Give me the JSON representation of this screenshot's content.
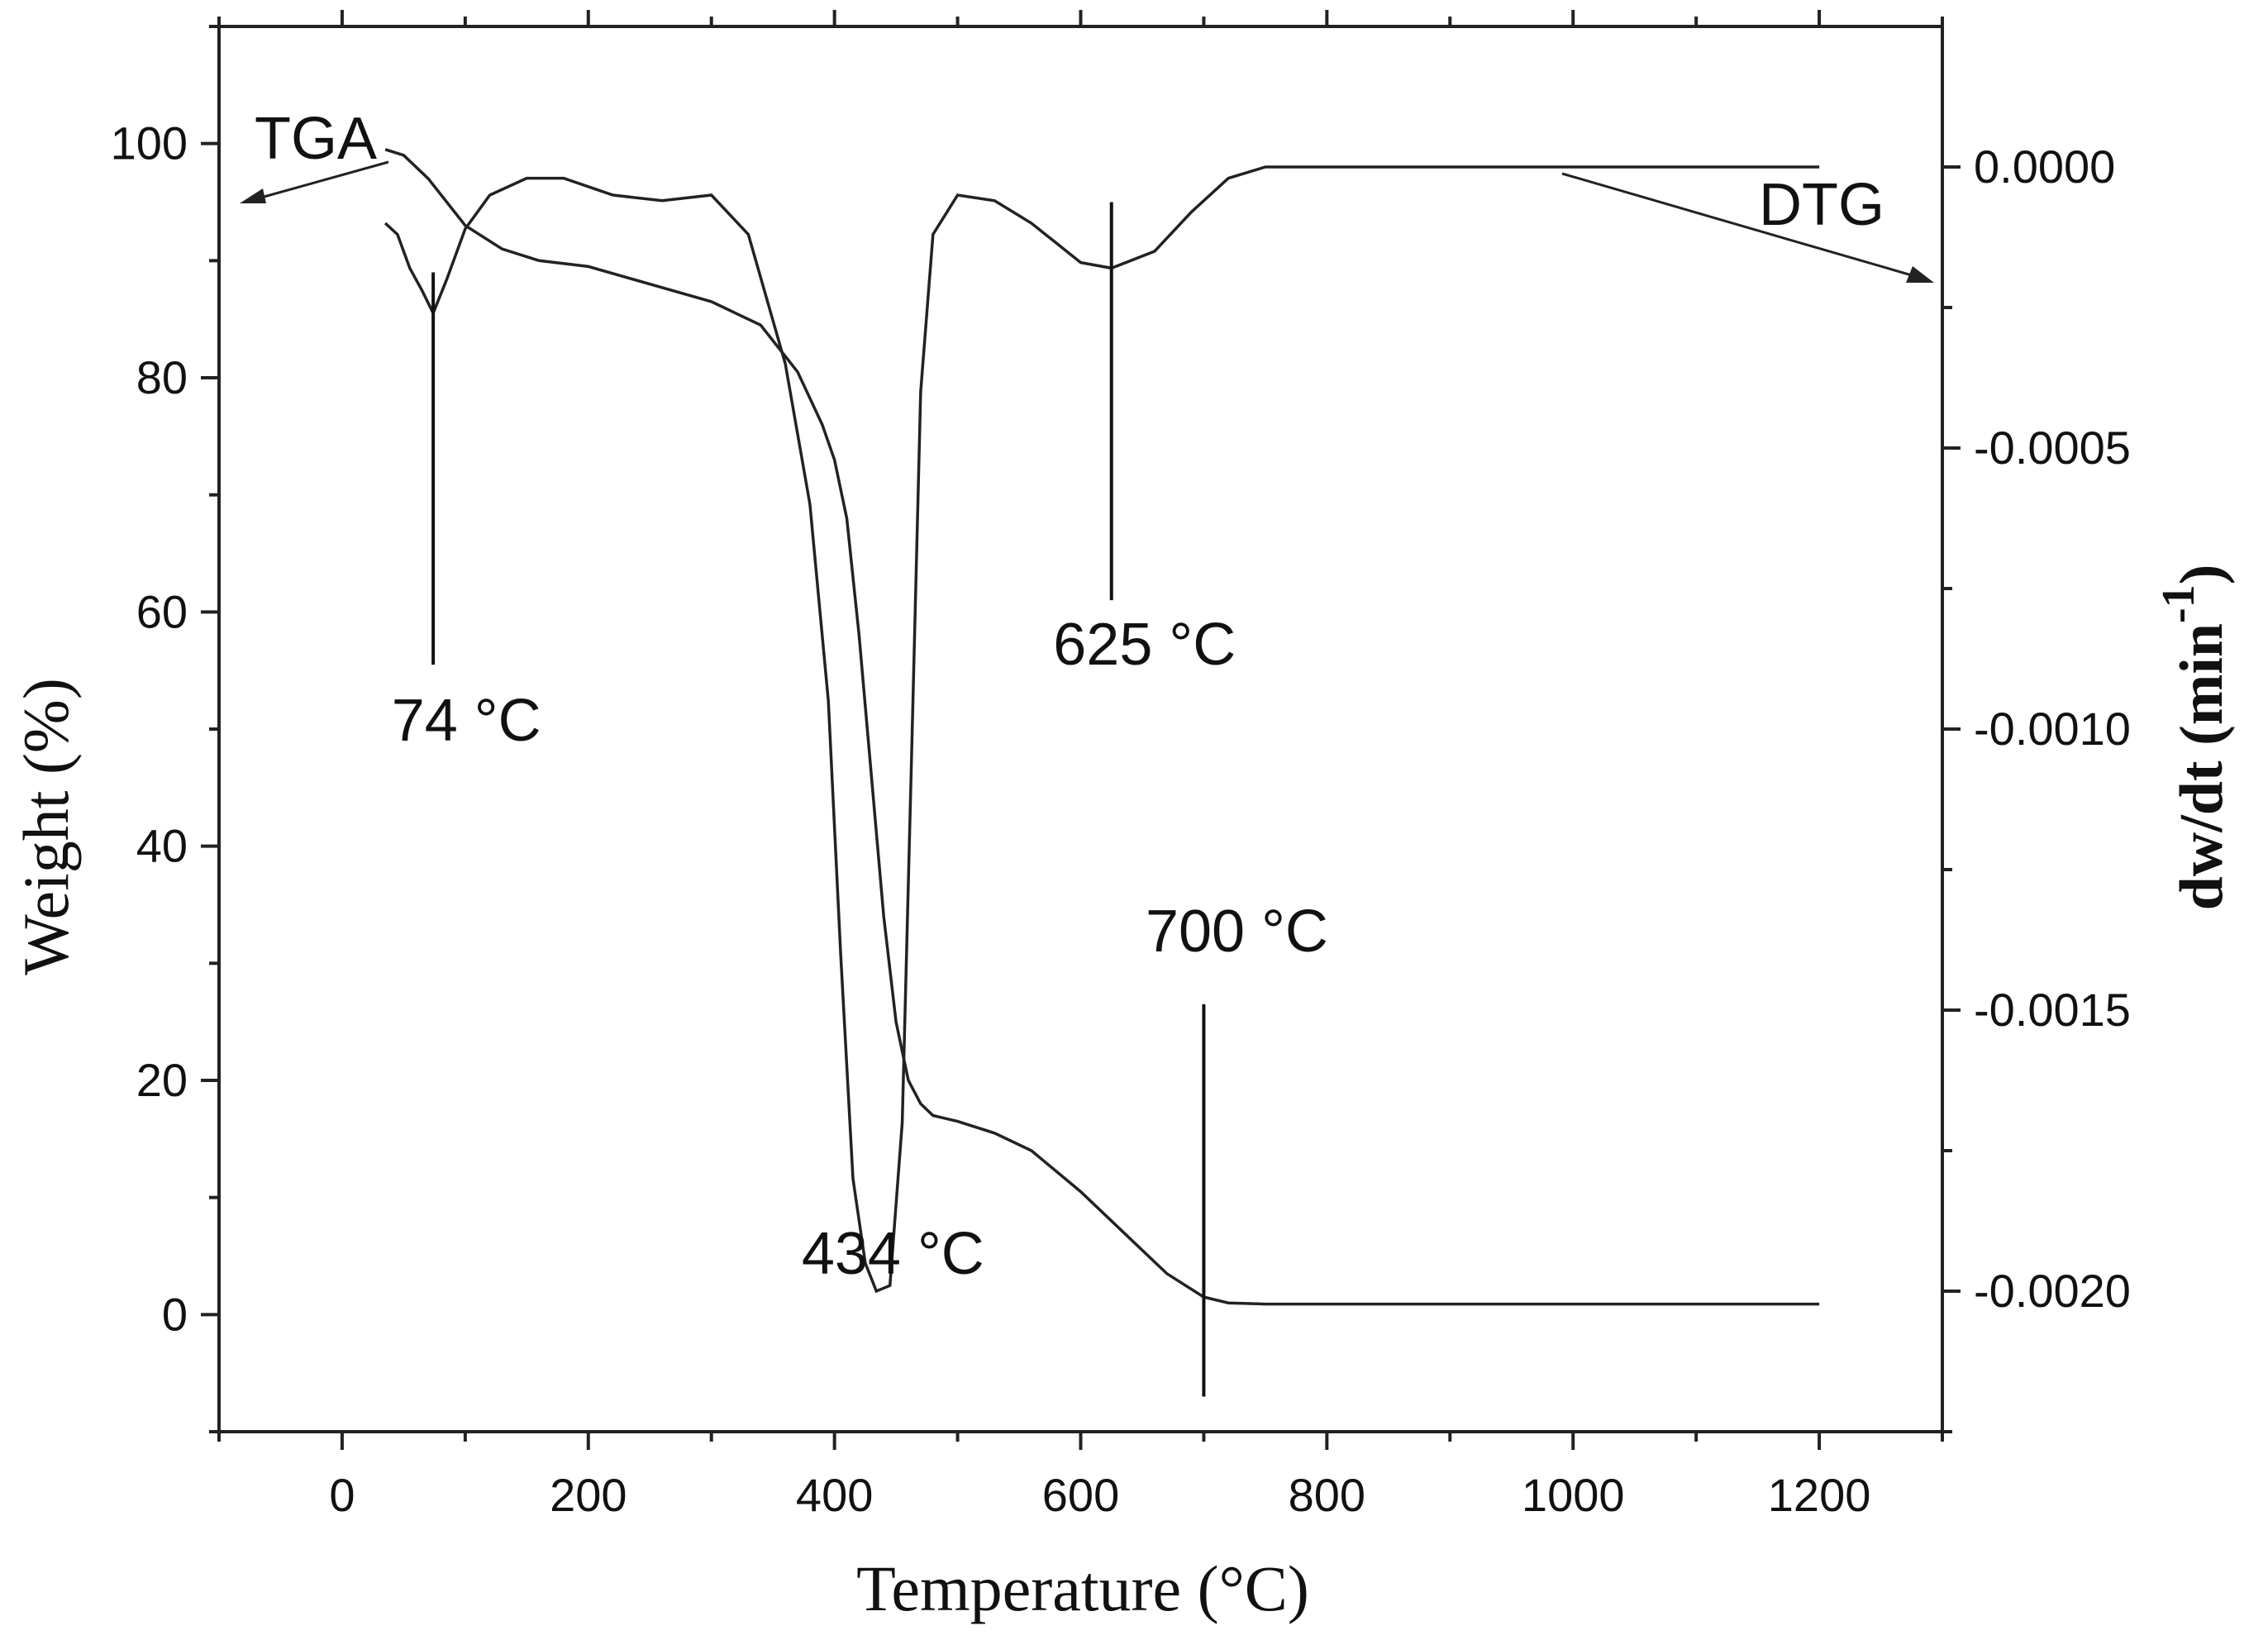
{
  "chart_data": {
    "type": "line",
    "title": "",
    "xlabel": "Temperature (°C)",
    "ylabel_left": "Weight (%)",
    "ylabel_right_base": "dw/dt (min",
    "ylabel_right_sup": "-1",
    "ylabel_right_close": ")",
    "xlim": [
      -100,
      1300
    ],
    "ylim_left": [
      -10,
      110
    ],
    "ylim_right": [
      -0.00225,
      0.00025
    ],
    "x_ticks": [
      0,
      200,
      400,
      600,
      800,
      1000,
      1200
    ],
    "x_tick_labels": [
      "0",
      "200",
      "400",
      "600",
      "800",
      "1000",
      "1200"
    ],
    "y_left_ticks": [
      0,
      20,
      40,
      60,
      80,
      100
    ],
    "y_left_tick_labels": [
      "0",
      "20",
      "40",
      "60",
      "80",
      "100"
    ],
    "y_right_ticks": [
      0,
      -0.0005,
      -0.001,
      -0.0015,
      -0.002
    ],
    "y_right_tick_labels": [
      "0.0000",
      "-0.0005",
      "-0.0010",
      "-0.0015",
      "-0.0020"
    ],
    "grid": false,
    "series": [
      {
        "name": "TGA",
        "axis": "left",
        "x": [
          35,
          50,
          70,
          100,
          130,
          160,
          200,
          250,
          300,
          340,
          370,
          390,
          400,
          410,
          420,
          430,
          440,
          450,
          460,
          470,
          480,
          500,
          530,
          560,
          600,
          640,
          670,
          700,
          720,
          750,
          800,
          1000,
          1200
        ],
        "values": [
          99.5,
          99,
          97,
          93,
          91,
          90,
          89.5,
          88,
          86.5,
          84.5,
          80.5,
          76,
          73,
          68,
          58,
          46,
          34,
          25,
          20,
          18,
          17,
          16.5,
          15.5,
          14,
          10.5,
          6.5,
          3.5,
          1.5,
          1,
          0.9,
          0.9,
          0.9,
          0.9
        ]
      },
      {
        "name": "DTG",
        "axis": "right",
        "x": [
          35,
          45,
          55,
          65,
          74,
          85,
          100,
          120,
          150,
          180,
          220,
          260,
          300,
          330,
          360,
          380,
          395,
          405,
          415,
          425,
          434,
          445,
          455,
          462,
          470,
          480,
          500,
          530,
          560,
          600,
          625,
          660,
          690,
          720,
          750,
          800,
          1000,
          1200
        ],
        "values": [
          -0.0001,
          -0.00012,
          -0.00018,
          -0.00022,
          -0.00026,
          -0.0002,
          -0.00011,
          -5e-05,
          -2e-05,
          -2e-05,
          -5e-05,
          -6e-05,
          -5e-05,
          -0.00012,
          -0.00035,
          -0.0006,
          -0.00095,
          -0.0014,
          -0.0018,
          -0.00195,
          -0.002,
          -0.00199,
          -0.0017,
          -0.0011,
          -0.0004,
          -0.00012,
          -5e-05,
          -6e-05,
          -0.0001,
          -0.00017,
          -0.00018,
          -0.00015,
          -8e-05,
          -2e-05,
          0,
          0,
          0,
          0
        ]
      }
    ],
    "annotations": [
      {
        "text": "74 °C",
        "x": 74,
        "axis": "left",
        "line_from": 89,
        "line_to": 55.5,
        "label_at": 49
      },
      {
        "text": "434 °C",
        "x": 434,
        "axis": "left",
        "line_from": 9,
        "line_to": 9,
        "label_at": 3.5
      },
      {
        "text": "625 °C",
        "x": 625,
        "axis": "left",
        "line_from": 95,
        "line_to": 61,
        "label_at": 55.5
      },
      {
        "text": "700 °C",
        "x": 700,
        "axis": "left",
        "line_from": 26.5,
        "line_to": -7,
        "label_at": 31
      }
    ],
    "legend_arrows": [
      {
        "text": "TGA",
        "points_to": "left axis"
      },
      {
        "text": "DTG",
        "points_to": "right axis"
      }
    ]
  }
}
